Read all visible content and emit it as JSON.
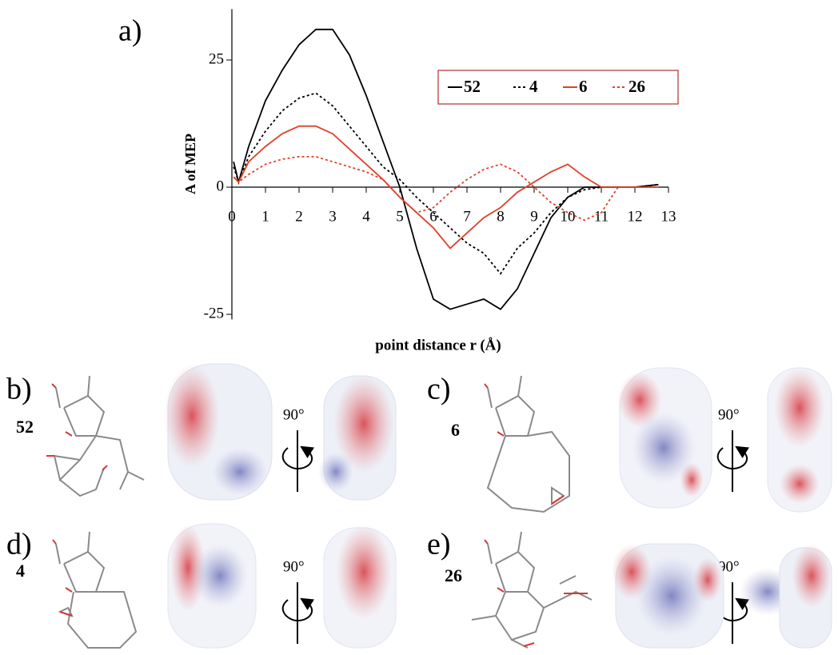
{
  "chart_data": {
    "type": "line",
    "panel_label": "a)",
    "y_label": "A of MEP",
    "x_label": "point distance r (Å)",
    "x": [
      0.05,
      0.2,
      0.5,
      1,
      1.5,
      2,
      2.5,
      3,
      3.5,
      4,
      4.5,
      5,
      5.5,
      6,
      6.5,
      7,
      7.5,
      8,
      8.5,
      9,
      9.5,
      10,
      10.5,
      11,
      11.5,
      12,
      12.7
    ],
    "series": [
      {
        "name": "52",
        "color": "#000000",
        "style": "solid",
        "values": [
          5,
          1,
          8,
          17,
          23,
          28,
          31,
          31,
          26,
          18,
          9,
          0,
          -12,
          -22,
          -24,
          -23,
          -22,
          -24,
          -20,
          -13,
          -6,
          -2,
          0,
          0,
          0,
          0,
          0.5
        ]
      },
      {
        "name": "4",
        "color": "#000000",
        "style": "dotted",
        "values": [
          4,
          1,
          6,
          11,
          15,
          17.5,
          18.5,
          16,
          12,
          8,
          4,
          1.5,
          -2,
          -5,
          -8,
          -11,
          -13,
          -17,
          -12,
          -9,
          -5,
          -2,
          -0.5,
          0,
          0,
          0,
          0.5
        ]
      },
      {
        "name": "6",
        "color": "#e0402a",
        "style": "solid",
        "values": [
          2,
          1,
          5,
          8,
          10.5,
          12,
          12,
          10.5,
          7.5,
          4.5,
          1.5,
          -2,
          -5,
          -8,
          -12,
          -9,
          -6,
          -4,
          -1,
          1,
          3,
          4.5,
          2,
          0,
          0,
          0,
          0
        ]
      },
      {
        "name": "26",
        "color": "#e0402a",
        "style": "dotted",
        "values": [
          2,
          1,
          2.5,
          4.5,
          5.5,
          6,
          6,
          5,
          4,
          3,
          1.5,
          -2,
          -5,
          -4,
          -1,
          1.5,
          3.5,
          4.5,
          3,
          0,
          -3,
          -5,
          -6.5,
          -5,
          0,
          0,
          0
        ]
      }
    ],
    "xlim": [
      0,
      13
    ],
    "xticks": [
      0,
      1,
      2,
      3,
      4,
      5,
      6,
      7,
      8,
      9,
      10,
      11,
      12,
      13
    ],
    "ylim": [
      -26,
      35
    ],
    "yticks": [
      -25,
      0,
      25
    ],
    "grid": false,
    "legend": "upper right"
  },
  "panels": [
    {
      "label": "b)",
      "compound": "52",
      "rotation": "90°"
    },
    {
      "label": "c)",
      "compound": "6",
      "rotation": "90°"
    },
    {
      "label": "d)",
      "compound": "4",
      "rotation": "90°"
    },
    {
      "label": "e)",
      "compound": "26",
      "rotation": "90°"
    }
  ]
}
